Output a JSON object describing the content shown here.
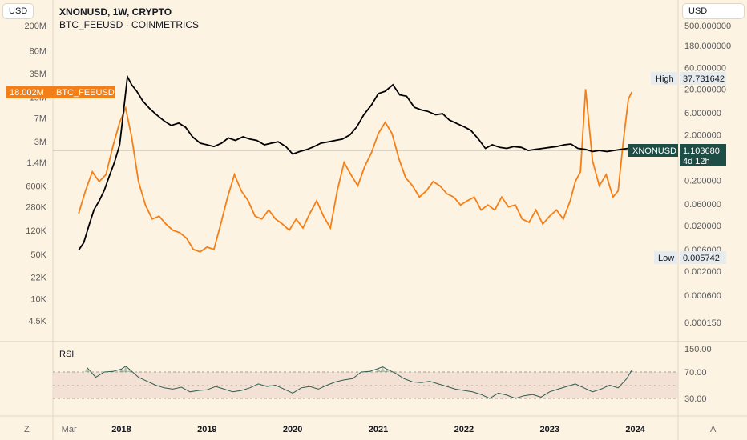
{
  "header": {
    "left_currency": "USD",
    "right_currency": "USD",
    "main_title": "XNONUSD, 1W, CRYPTO",
    "overlay_title": "BTC_FEEUSD · COINMETRICS"
  },
  "colors": {
    "background": "#fcf3e3",
    "main_series": "#000000",
    "overlay_series": "#f57f17",
    "rsi_line": "#2e5e4e",
    "rsi_band": "#f0dcd2",
    "price_tag": "#1e4d45"
  },
  "chart_data": [
    {
      "type": "line",
      "title": "XNONUSD, 1W, CRYPTO",
      "scale": "log",
      "x_axis": {
        "month_label": "Mar",
        "year_labels": [
          "2018",
          "2019",
          "2020",
          "2021",
          "2022",
          "2023",
          "2024"
        ],
        "range": [
          "2017-03",
          "2024-01"
        ]
      },
      "left_axis": {
        "currency": "USD",
        "tick_labels": [
          "200M",
          "80M",
          "35M",
          "15M",
          "7M",
          "3M",
          "1.4M",
          "600K",
          "280K",
          "120K",
          "50K",
          "22K",
          "10K",
          "4.5K"
        ],
        "tick_values": [
          200000000,
          80000000,
          35000000,
          15000000,
          7000000,
          3000000,
          1400000,
          600000,
          280000,
          120000,
          50000,
          22000,
          10000,
          4500
        ]
      },
      "right_axis": {
        "currency": "USD",
        "tick_labels": [
          "500.000000",
          "180.000000",
          "60.000000",
          "20.000000",
          "6.000000",
          "2.000000",
          "0.600000",
          "0.200000",
          "0.060000",
          "0.020000",
          "0.006000",
          "0.002000",
          "0.000600",
          "0.000150"
        ],
        "tick_values": [
          500,
          180,
          60,
          20,
          6,
          2,
          0.6,
          0.2,
          0.06,
          0.02,
          0.006,
          0.002,
          0.0006,
          0.00015
        ]
      },
      "markers": {
        "high_label": "High",
        "high_value": "37.731642",
        "low_label": "Low",
        "low_value": "0.005742",
        "current_symbol": "XNONUSD",
        "current_price": "1.103680",
        "current_countdown": "4d 12h",
        "overlay_tag_value": "18.002M",
        "overlay_tag_name": "BTC_FEEUSD"
      },
      "series": [
        {
          "name": "XNONUSD",
          "axis": "right",
          "x": [
            2017.5,
            2017.56,
            2017.62,
            2017.68,
            2017.74,
            2017.8,
            2017.86,
            2017.92,
            2017.98,
            2018.03,
            2018.07,
            2018.12,
            2018.18,
            2018.25,
            2018.33,
            2018.41,
            2018.5,
            2018.58,
            2018.67,
            2018.75,
            2018.83,
            2018.92,
            2019.0,
            2019.08,
            2019.17,
            2019.25,
            2019.33,
            2019.42,
            2019.5,
            2019.58,
            2019.67,
            2019.75,
            2019.83,
            2019.92,
            2020.0,
            2020.08,
            2020.17,
            2020.25,
            2020.33,
            2020.42,
            2020.5,
            2020.58,
            2020.67,
            2020.75,
            2020.83,
            2020.92,
            2021.0,
            2021.08,
            2021.17,
            2021.25,
            2021.33,
            2021.42,
            2021.5,
            2021.58,
            2021.67,
            2021.75,
            2021.83,
            2021.92,
            2022.0,
            2022.08,
            2022.17,
            2022.25,
            2022.33,
            2022.42,
            2022.5,
            2022.58,
            2022.67,
            2022.75,
            2022.83,
            2022.92,
            2023.0,
            2023.08,
            2023.17,
            2023.25,
            2023.33,
            2023.42,
            2023.5,
            2023.58,
            2023.67,
            2023.75,
            2023.83,
            2023.92,
            2023.96
          ],
          "y": [
            0.0058,
            0.0085,
            0.02,
            0.045,
            0.07,
            0.12,
            0.25,
            0.5,
            1.2,
            8.0,
            37.7,
            25.0,
            18.0,
            11.0,
            7.5,
            5.5,
            4.0,
            3.2,
            3.6,
            2.9,
            1.8,
            1.3,
            1.2,
            1.1,
            1.3,
            1.7,
            1.5,
            1.8,
            1.6,
            1.5,
            1.2,
            1.3,
            1.4,
            1.1,
            0.75,
            0.85,
            0.95,
            1.1,
            1.3,
            1.4,
            1.5,
            1.6,
            2.0,
            3.0,
            5.5,
            9.0,
            16.0,
            18.0,
            25.0,
            15.0,
            14.0,
            8.0,
            7.0,
            6.5,
            5.5,
            5.8,
            4.2,
            3.5,
            3.0,
            2.5,
            1.6,
            1.0,
            1.2,
            1.05,
            1.0,
            1.1,
            1.05,
            0.9,
            0.95,
            1.0,
            1.05,
            1.1,
            1.2,
            1.25,
            1.0,
            0.95,
            0.85,
            0.9,
            0.85,
            0.9,
            0.95,
            1.0,
            1.1
          ]
        },
        {
          "name": "BTC_FEEUSD",
          "axis": "left",
          "x": [
            2017.5,
            2017.58,
            2017.66,
            2017.74,
            2017.82,
            2017.9,
            2017.98,
            2018.05,
            2018.12,
            2018.2,
            2018.28,
            2018.36,
            2018.44,
            2018.52,
            2018.6,
            2018.68,
            2018.76,
            2018.84,
            2018.92,
            2019.0,
            2019.08,
            2019.16,
            2019.24,
            2019.32,
            2019.4,
            2019.48,
            2019.56,
            2019.64,
            2019.72,
            2019.8,
            2019.88,
            2019.96,
            2020.04,
            2020.12,
            2020.2,
            2020.28,
            2020.36,
            2020.44,
            2020.52,
            2020.6,
            2020.68,
            2020.76,
            2020.84,
            2020.92,
            2021.0,
            2021.08,
            2021.16,
            2021.24,
            2021.32,
            2021.4,
            2021.48,
            2021.56,
            2021.64,
            2021.72,
            2021.8,
            2021.88,
            2021.96,
            2022.04,
            2022.12,
            2022.2,
            2022.28,
            2022.36,
            2022.44,
            2022.52,
            2022.6,
            2022.68,
            2022.76,
            2022.84,
            2022.92,
            2023.0,
            2023.08,
            2023.16,
            2023.24,
            2023.3,
            2023.36,
            2023.42,
            2023.5,
            2023.58,
            2023.66,
            2023.74,
            2023.8,
            2023.86,
            2023.92,
            2023.96
          ],
          "y": [
            220000,
            500000,
            1000000,
            700000,
            900000,
            2500000,
            6000000,
            10000000,
            3500000,
            700000,
            300000,
            180000,
            200000,
            150000,
            120000,
            110000,
            90000,
            60000,
            55000,
            65000,
            60000,
            150000,
            400000,
            900000,
            500000,
            350000,
            200000,
            180000,
            250000,
            180000,
            150000,
            120000,
            180000,
            130000,
            220000,
            350000,
            200000,
            130000,
            500000,
            1400000,
            900000,
            600000,
            1200000,
            2000000,
            4000000,
            6000000,
            4000000,
            1600000,
            800000,
            600000,
            400000,
            500000,
            700000,
            600000,
            450000,
            400000,
            300000,
            350000,
            400000,
            250000,
            300000,
            250000,
            400000,
            280000,
            300000,
            180000,
            160000,
            250000,
            150000,
            200000,
            250000,
            180000,
            350000,
            700000,
            1000000,
            20000000,
            1500000,
            600000,
            900000,
            400000,
            500000,
            3000000,
            14000000,
            18000000
          ]
        }
      ]
    },
    {
      "type": "line",
      "title": "RSI",
      "y_axis": {
        "tick_labels": [
          "150.00",
          "70.00",
          "30.00"
        ],
        "tick_values": [
          150,
          70,
          30
        ],
        "band": [
          30,
          70
        ]
      },
      "series": [
        {
          "name": "RSI",
          "x": [
            2017.6,
            2017.7,
            2017.8,
            2017.9,
            2018.0,
            2018.05,
            2018.1,
            2018.2,
            2018.3,
            2018.4,
            2018.5,
            2018.6,
            2018.7,
            2018.8,
            2018.9,
            2019.0,
            2019.1,
            2019.2,
            2019.3,
            2019.4,
            2019.5,
            2019.6,
            2019.7,
            2019.8,
            2019.9,
            2020.0,
            2020.1,
            2020.2,
            2020.3,
            2020.4,
            2020.5,
            2020.6,
            2020.7,
            2020.8,
            2020.9,
            2021.0,
            2021.05,
            2021.1,
            2021.2,
            2021.3,
            2021.4,
            2021.5,
            2021.6,
            2021.7,
            2021.8,
            2021.9,
            2022.0,
            2022.1,
            2022.2,
            2022.3,
            2022.4,
            2022.5,
            2022.6,
            2022.7,
            2022.8,
            2022.9,
            2023.0,
            2023.1,
            2023.2,
            2023.3,
            2023.4,
            2023.5,
            2023.6,
            2023.7,
            2023.8,
            2023.9,
            2023.96
          ],
          "y": [
            85,
            62,
            70,
            72,
            80,
            90,
            78,
            62,
            56,
            50,
            46,
            44,
            47,
            40,
            42,
            43,
            48,
            44,
            40,
            42,
            46,
            52,
            48,
            50,
            44,
            38,
            46,
            48,
            44,
            50,
            55,
            58,
            60,
            70,
            72,
            82,
            88,
            80,
            68,
            60,
            55,
            54,
            56,
            52,
            48,
            44,
            42,
            40,
            36,
            30,
            38,
            35,
            30,
            34,
            36,
            32,
            40,
            44,
            48,
            52,
            46,
            40,
            44,
            50,
            46,
            60,
            76
          ]
        }
      ]
    }
  ],
  "rsi_panel": {
    "label": "RSI"
  },
  "footer": {
    "left_button": "Z",
    "right_button": "A"
  }
}
